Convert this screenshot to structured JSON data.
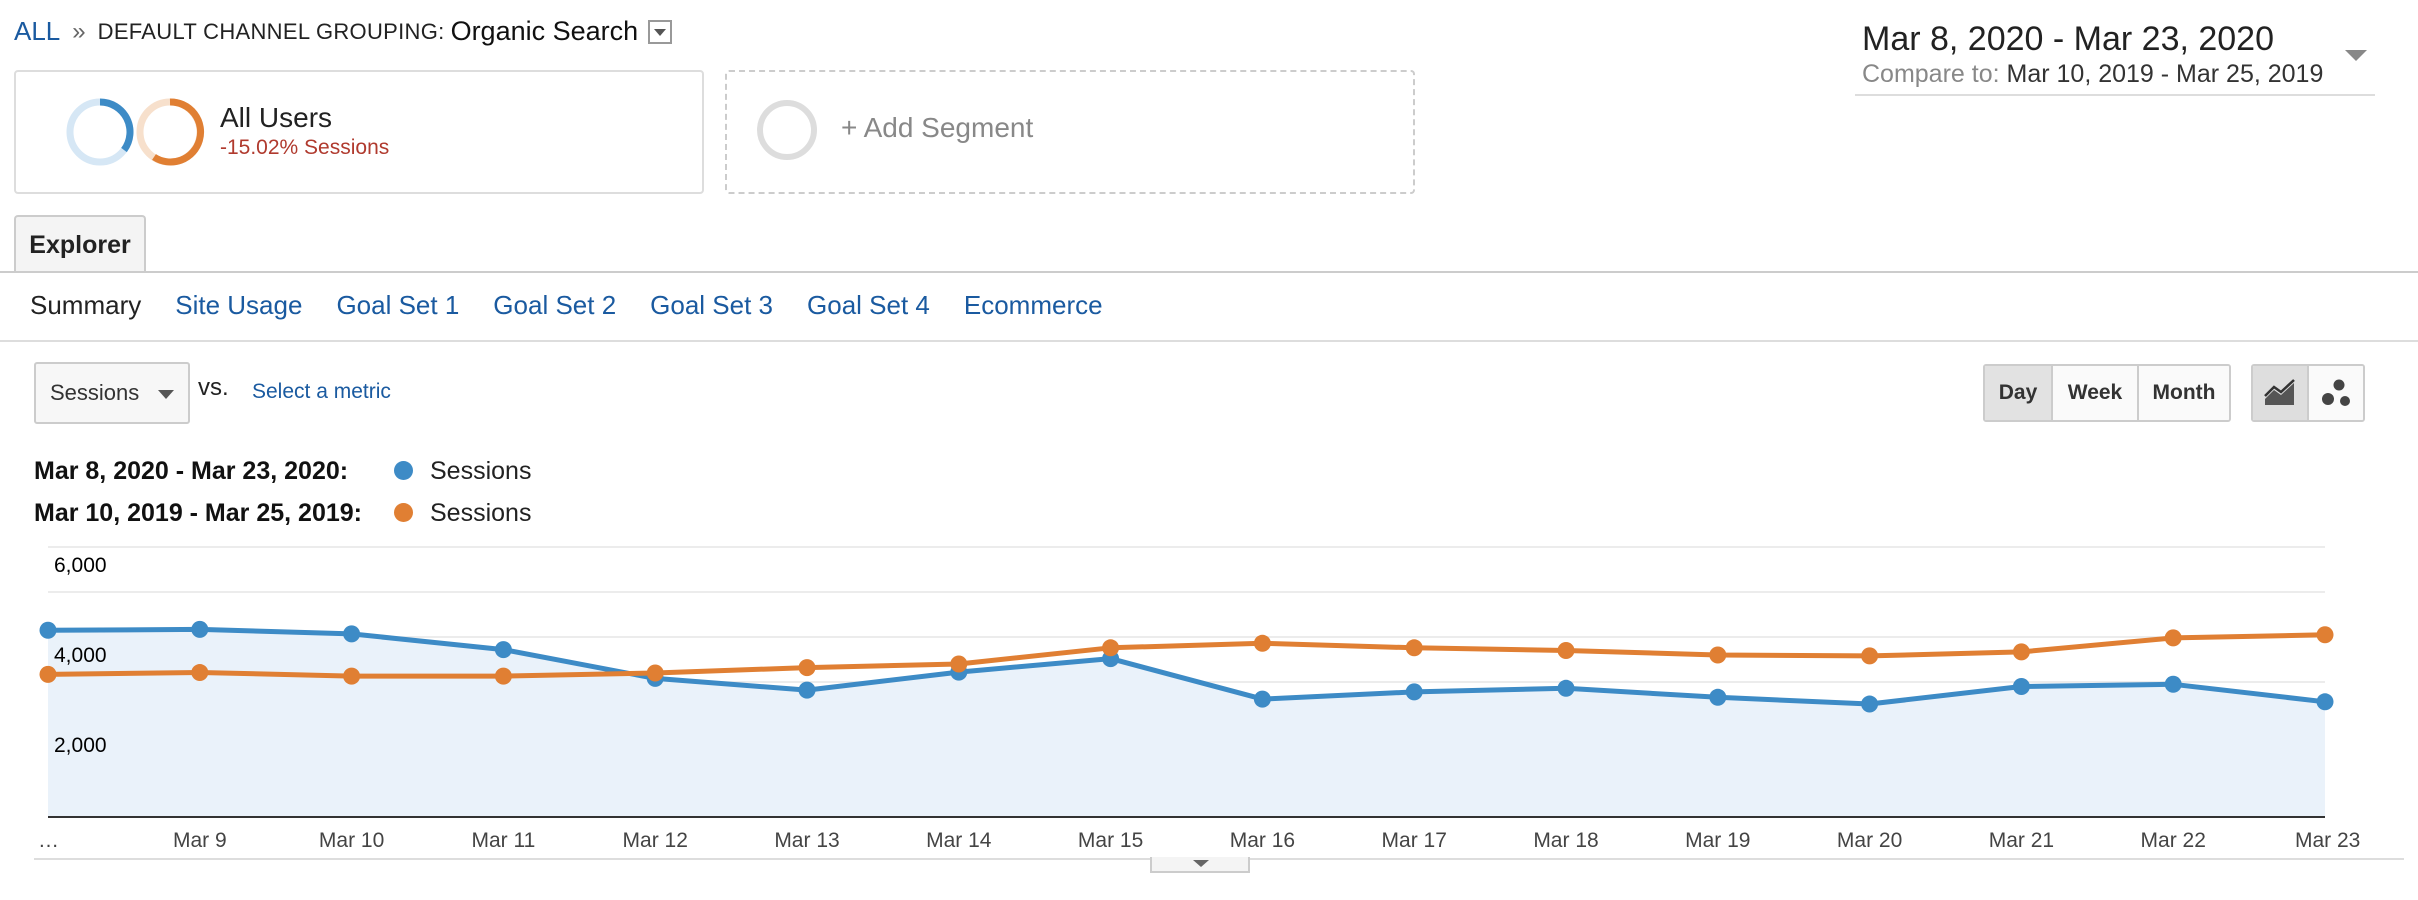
{
  "breadcrumb": {
    "root": "ALL",
    "separator": "»",
    "dimension": "DEFAULT CHANNEL GROUPING:",
    "value": "Organic Search"
  },
  "date_range": {
    "primary": "Mar 8, 2020 - Mar 23, 2020",
    "compare_label": "Compare to:",
    "compare_value": "Mar 10, 2019 - Mar 25, 2019"
  },
  "segments": {
    "active": {
      "title": "All Users",
      "metric": "-15.02% Sessions"
    },
    "add": {
      "label": "+ Add Segment"
    }
  },
  "tabs": {
    "explorer": "Explorer"
  },
  "subtabs": [
    "Summary",
    "Site Usage",
    "Goal Set 1",
    "Goal Set 2",
    "Goal Set 3",
    "Goal Set 4",
    "Ecommerce"
  ],
  "metric_selector": {
    "value": "Sessions",
    "vs": "vs.",
    "select_metric": "Select a metric"
  },
  "granularity": {
    "day": "Day",
    "week": "Week",
    "month": "Month",
    "selected": "Day"
  },
  "chart_type": {
    "line": "line-chart-icon",
    "motion": "motion-chart-icon"
  },
  "legend": [
    {
      "range": "Mar 8, 2020 - Mar 23, 2020:",
      "series": "Sessions",
      "color": "#3d8bc6"
    },
    {
      "range": "Mar 10, 2019 - Mar 25, 2019:",
      "series": "Sessions",
      "color": "#e07f33"
    }
  ],
  "colors": {
    "primary": "#3d8bc6",
    "compare": "#e07f33",
    "link": "#1a5aa0",
    "negative": "#b03a2e",
    "area_fill": "#eaf2fa"
  },
  "chart_data": {
    "type": "line",
    "categories": [
      "…",
      "Mar 9",
      "Mar 10",
      "Mar 11",
      "Mar 12",
      "Mar 13",
      "Mar 14",
      "Mar 15",
      "Mar 16",
      "Mar 17",
      "Mar 18",
      "Mar 19",
      "Mar 20",
      "Mar 21",
      "Mar 22",
      "Mar 23"
    ],
    "series": [
      {
        "name": "Sessions",
        "values": [
          4150,
          4170,
          4070,
          3720,
          3080,
          2820,
          3220,
          3520,
          2620,
          2780,
          2860,
          2660,
          2510,
          2900,
          2950,
          2560
        ]
      },
      {
        "name": "Sessions",
        "values": [
          3170,
          3210,
          3130,
          3130,
          3200,
          3320,
          3400,
          3760,
          3860,
          3760,
          3700,
          3600,
          3580,
          3670,
          3980,
          4050
        ]
      }
    ],
    "y_ticks": [
      "6,000",
      "4,000",
      "2,000"
    ],
    "ylim": [
      0,
      6000
    ],
    "grid": true,
    "area_fill_series": 0
  }
}
